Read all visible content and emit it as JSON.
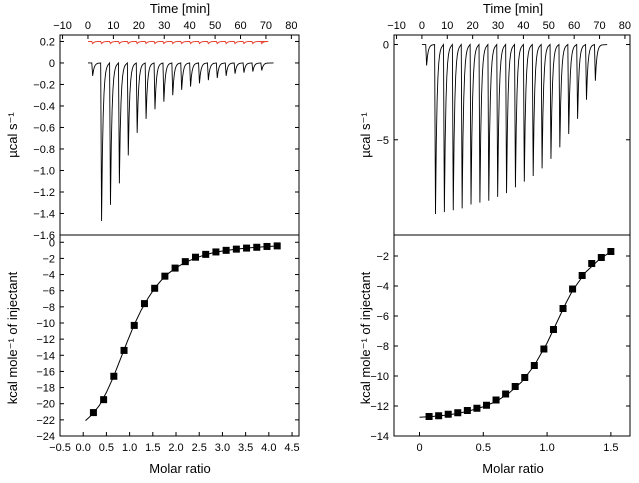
{
  "chart_data": [
    {
      "id": "left-thermogram",
      "type": "line",
      "x_axis_top_label": "Time [min]",
      "x_ticks": [
        "−10",
        "0",
        "10",
        "20",
        "30",
        "40",
        "50",
        "60",
        "70",
        "80"
      ],
      "x_tick_values": [
        -10,
        0,
        10,
        20,
        30,
        40,
        50,
        60,
        70,
        80
      ],
      "xlim": [
        -11,
        83
      ],
      "ylabel": "µcal s⁻¹",
      "y_ticks": [
        "0.2",
        "0",
        "−0.2",
        "−0.4",
        "−0.6",
        "−0.8",
        "−1.0",
        "−1.2",
        "−1.4",
        "−1.6"
      ],
      "y_tick_values": [
        0.2,
        0,
        -0.2,
        -0.4,
        -0.6,
        -0.8,
        -1.0,
        -1.2,
        -1.4,
        -1.6
      ],
      "ylim": [
        -1.6,
        0.26
      ],
      "series": [
        {
          "color": "#000000",
          "baseline": 0,
          "injection_start_min": 0,
          "injection_times_min": [
            1.5,
            5,
            8.5,
            12,
            15.5,
            19,
            22.5,
            26,
            29.5,
            33,
            36.5,
            40,
            43.5,
            47,
            50.5,
            54,
            57.5,
            61,
            64.5,
            68
          ],
          "peak_values": [
            -0.12,
            -1.47,
            -1.32,
            -1.12,
            -0.86,
            -0.65,
            -0.52,
            -0.43,
            -0.36,
            -0.3,
            -0.25,
            -0.22,
            -0.19,
            -0.16,
            -0.14,
            -0.12,
            -0.1,
            -0.09,
            -0.08,
            -0.07
          ],
          "end_min": 73
        },
        {
          "color": "#e8432f",
          "baseline": 0.2,
          "injection_start_min": 0,
          "injection_times_min": [
            1.5,
            5,
            8.5,
            12,
            15.5,
            19,
            22.5,
            26,
            29.5,
            33,
            36.5,
            40,
            43.5,
            47,
            50.5,
            54,
            57.5,
            61,
            64.5,
            68
          ],
          "peak_values": [
            0.18,
            0.18,
            0.18,
            0.18,
            0.18,
            0.18,
            0.18,
            0.18,
            0.18,
            0.18,
            0.18,
            0.18,
            0.18,
            0.18,
            0.18,
            0.18,
            0.18,
            0.18,
            0.18,
            0.18
          ],
          "end_min": 68
        }
      ]
    },
    {
      "id": "left-isotherm",
      "type": "scatter",
      "xlabel": "Molar ratio",
      "x_ticks": [
        "−0.5",
        "0.0",
        "0.5",
        "1.0",
        "1.5",
        "2.0",
        "2.5",
        "3.0",
        "3.5",
        "4.0",
        "4.5"
      ],
      "x_tick_values": [
        -0.5,
        0,
        0.5,
        1,
        1.5,
        2,
        2.5,
        3,
        3.5,
        4,
        4.5
      ],
      "xlim": [
        -0.5,
        4.65
      ],
      "ylabel": "kcal mole⁻¹ of injectant",
      "y_ticks": [
        "0",
        "−2",
        "−4",
        "−6",
        "−8",
        "−10",
        "−12",
        "−14",
        "−16",
        "−18",
        "−20",
        "−22",
        "−24"
      ],
      "y_tick_values": [
        0,
        -2,
        -4,
        -6,
        -8,
        -10,
        -12,
        -14,
        -16,
        -18,
        -20,
        -22,
        -24
      ],
      "ylim": [
        -24,
        0.9
      ],
      "points": {
        "x": [
          0.22,
          0.44,
          0.66,
          0.88,
          1.1,
          1.32,
          1.54,
          1.76,
          1.98,
          2.2,
          2.42,
          2.64,
          2.86,
          3.08,
          3.3,
          3.52,
          3.74,
          3.96,
          4.18
        ],
        "y": [
          -21.1,
          -19.5,
          -16.6,
          -13.4,
          -10.3,
          -7.6,
          -5.7,
          -4.2,
          -3.2,
          -2.4,
          -1.85,
          -1.5,
          -1.2,
          -1.0,
          -0.85,
          -0.72,
          -0.62,
          -0.52,
          -0.45
        ]
      },
      "fit": {
        "x": [
          0.05,
          0.2,
          0.35,
          0.5,
          0.65,
          0.8,
          0.95,
          1.1,
          1.25,
          1.4,
          1.55,
          1.7,
          1.85,
          2.0,
          2.2,
          2.4,
          2.6,
          2.8,
          3.0,
          3.3,
          3.6,
          3.9,
          4.2
        ],
        "y": [
          -22.1,
          -21.3,
          -20.2,
          -18.6,
          -16.7,
          -14.5,
          -12.3,
          -10.2,
          -8.4,
          -6.9,
          -5.6,
          -4.6,
          -3.8,
          -3.15,
          -2.5,
          -2.0,
          -1.6,
          -1.3,
          -1.08,
          -0.85,
          -0.68,
          -0.55,
          -0.45
        ]
      }
    },
    {
      "id": "right-thermogram",
      "type": "line",
      "x_axis_top_label": "Time [min]",
      "x_ticks": [
        "−10",
        "0",
        "10",
        "20",
        "30",
        "40",
        "50",
        "60",
        "70",
        "80"
      ],
      "x_tick_values": [
        -10,
        0,
        10,
        20,
        30,
        40,
        50,
        60,
        70,
        80
      ],
      "xlim": [
        -11,
        82
      ],
      "ylabel": "µcal s⁻¹",
      "y_ticks": [
        "0",
        "−5"
      ],
      "y_tick_values": [
        0,
        -5
      ],
      "ylim": [
        -10,
        0.5
      ],
      "series": [
        {
          "color": "#000000",
          "baseline": 0,
          "injection_start_min": 0,
          "injection_times_min": [
            1.5,
            5,
            8.5,
            12,
            15.5,
            19,
            22.5,
            26,
            29.5,
            33,
            36.5,
            40,
            43.5,
            47,
            50.5,
            54,
            57.5,
            61,
            64.5,
            68
          ],
          "peak_values": [
            -1.1,
            -8.9,
            -8.8,
            -8.7,
            -8.6,
            -8.4,
            -8.3,
            -8.2,
            -8.0,
            -7.8,
            -7.5,
            -7.2,
            -6.9,
            -6.5,
            -6.0,
            -5.4,
            -4.7,
            -3.9,
            -2.9,
            -1.9
          ],
          "end_min": 73
        }
      ]
    },
    {
      "id": "right-isotherm",
      "type": "scatter",
      "xlabel": "Molar ratio",
      "x_ticks": [
        "0",
        "0.5",
        "1.0",
        "1.5"
      ],
      "x_tick_values": [
        0,
        0.5,
        1,
        1.5
      ],
      "xlim": [
        -0.2,
        1.65
      ],
      "ylabel": "kcal mole⁻¹ of injectant",
      "y_ticks": [
        "−2",
        "−4",
        "−6",
        "−8",
        "−10",
        "−12",
        "−14"
      ],
      "y_tick_values": [
        -2,
        -4,
        -6,
        -8,
        -10,
        -12,
        -14
      ],
      "ylim": [
        -14,
        -0.6
      ],
      "points": {
        "x": [
          0.075,
          0.15,
          0.225,
          0.3,
          0.375,
          0.45,
          0.525,
          0.6,
          0.675,
          0.75,
          0.825,
          0.9,
          0.975,
          1.05,
          1.125,
          1.2,
          1.275,
          1.35,
          1.425,
          1.5
        ],
        "y": [
          -12.7,
          -12.65,
          -12.55,
          -12.45,
          -12.3,
          -12.15,
          -11.95,
          -11.6,
          -11.2,
          -10.7,
          -10.1,
          -9.3,
          -8.2,
          -6.9,
          -5.5,
          -4.2,
          -3.3,
          -2.5,
          -2.1,
          -1.7
        ]
      },
      "fit": {
        "x": [
          0.0,
          0.1,
          0.2,
          0.3,
          0.4,
          0.5,
          0.6,
          0.7,
          0.8,
          0.9,
          1.0,
          1.05,
          1.1,
          1.15,
          1.2,
          1.3,
          1.4,
          1.5
        ],
        "y": [
          -12.75,
          -12.7,
          -12.62,
          -12.5,
          -12.3,
          -12.05,
          -11.7,
          -11.15,
          -10.4,
          -9.3,
          -7.8,
          -6.9,
          -6.0,
          -5.1,
          -4.3,
          -3.1,
          -2.3,
          -1.7
        ]
      }
    }
  ]
}
